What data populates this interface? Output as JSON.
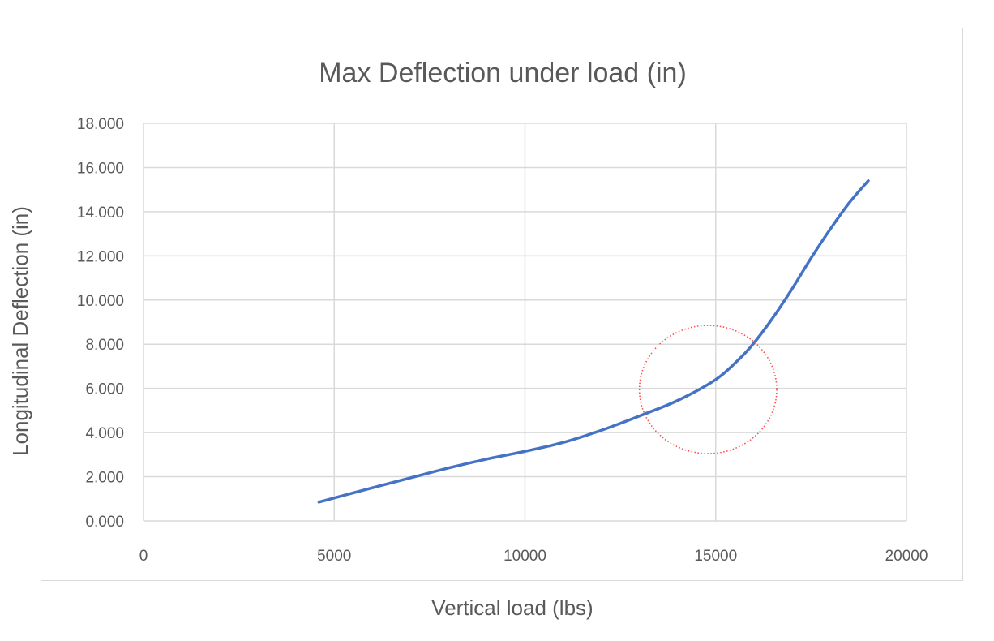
{
  "chart_data": {
    "type": "line",
    "title": "Max Deflection under load (in)",
    "xlabel": "Vertical load (lbs)",
    "ylabel": "Longitudinal Deflection (in)",
    "xlim": [
      0,
      20000
    ],
    "ylim": [
      0,
      18
    ],
    "x_ticks": [
      0,
      5000,
      10000,
      15000,
      20000
    ],
    "x_tick_labels": [
      "0",
      "5000",
      "10000",
      "15000",
      "20000"
    ],
    "y_ticks": [
      0,
      2,
      4,
      6,
      8,
      10,
      12,
      14,
      16,
      18
    ],
    "y_tick_labels": [
      "0.000",
      "2.000",
      "4.000",
      "6.000",
      "8.000",
      "10.000",
      "12.000",
      "14.000",
      "16.000",
      "18.000"
    ],
    "grid": true,
    "series": [
      {
        "color": "#4472c4",
        "x": [
          4600,
          6000,
          7000,
          8000,
          9000,
          10000,
          11000,
          12000,
          13000,
          14000,
          15000,
          15600,
          16000,
          16500,
          17000,
          17500,
          18000,
          18500,
          19000
        ],
        "y": [
          0.85,
          1.5,
          1.95,
          2.4,
          2.8,
          3.15,
          3.55,
          4.1,
          4.75,
          5.45,
          6.4,
          7.3,
          8.05,
          9.2,
          10.5,
          11.9,
          13.2,
          14.4,
          15.4
        ]
      }
    ],
    "annotations": [
      {
        "type": "dotted-circle",
        "color": "#ff4d4d",
        "cx": 14800,
        "cy": 5.95,
        "rx": 1800,
        "ry": 2.9
      }
    ]
  }
}
